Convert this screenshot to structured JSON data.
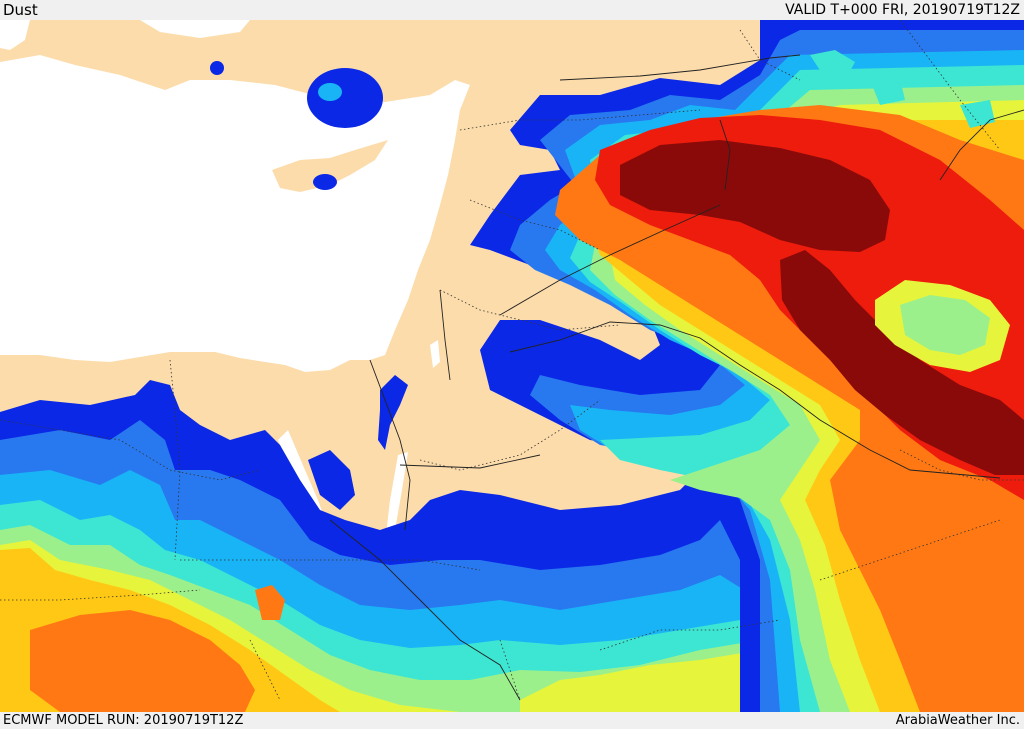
{
  "header": {
    "field_name": "Dust",
    "valid_time": "VALID T+000 FRI, 20190719T12Z"
  },
  "footer": {
    "model_run": "ECMWF MODEL RUN: 20190719T12Z",
    "credit": "ArabiaWeather Inc."
  },
  "palette": {
    "land": "#fcdcaa",
    "sea": "#ffffff",
    "level_1": "#0a28e6",
    "level_2": "#2878f0",
    "level_3": "#19b4f5",
    "level_4": "#3ce6d2",
    "level_5": "#9bf08c",
    "level_6": "#e6f53c",
    "level_7": "#ffc814",
    "level_8": "#ff7814",
    "level_9": "#ee1c0c",
    "level_10": "#8a0a0a"
  }
}
